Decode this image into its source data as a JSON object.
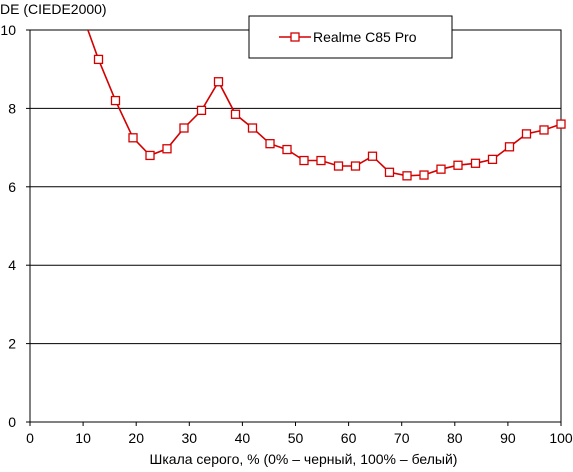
{
  "chart_data": {
    "type": "line",
    "ylabel": "DE (CIEDE2000)",
    "xlabel": "Шкала серого, % (0% – черный, 100% – белый)",
    "xlim": [
      0,
      100
    ],
    "ylim": [
      0,
      10
    ],
    "xticks": [
      "0",
      "10",
      "20",
      "30",
      "40",
      "50",
      "60",
      "70",
      "80",
      "90",
      "100"
    ],
    "yticks": [
      "0",
      "2",
      "4",
      "6",
      "8",
      "10"
    ],
    "grid": "horizontal",
    "legend_position": "top-right",
    "series": [
      {
        "name": "Realme C85 Pro",
        "color": "#d40000",
        "marker": "open-square",
        "clip_start": {
          "x": 10.9,
          "y": 10.0
        },
        "x": [
          12.9,
          16.1,
          19.4,
          22.6,
          25.8,
          29.0,
          32.3,
          35.5,
          38.7,
          41.9,
          45.2,
          48.4,
          51.6,
          54.8,
          58.1,
          61.3,
          64.5,
          67.7,
          71.0,
          74.2,
          77.4,
          80.6,
          83.9,
          87.1,
          90.3,
          93.5,
          96.8,
          100.0
        ],
        "y": [
          9.25,
          8.2,
          7.25,
          6.8,
          6.97,
          7.5,
          7.95,
          8.68,
          7.85,
          7.5,
          7.1,
          6.95,
          6.67,
          6.67,
          6.53,
          6.53,
          6.78,
          6.37,
          6.28,
          6.3,
          6.45,
          6.55,
          6.6,
          6.7,
          7.02,
          7.35,
          7.45,
          7.6
        ]
      }
    ]
  }
}
